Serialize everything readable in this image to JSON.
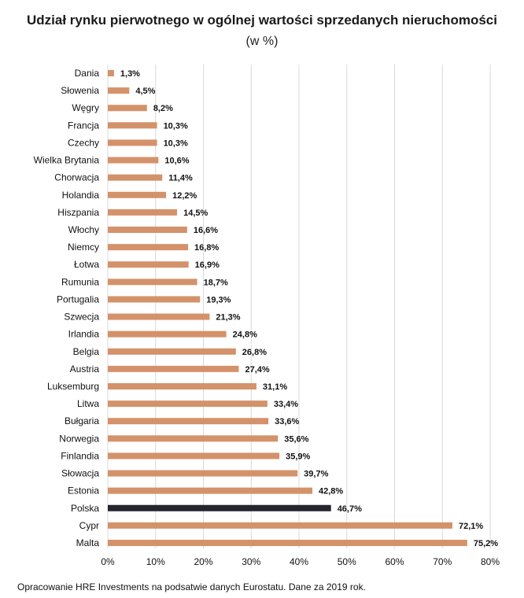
{
  "chart_data": {
    "type": "bar",
    "orientation": "horizontal",
    "title": "Udział rynku pierwotnego w ogólnej wartości sprzedanych nieruchomości",
    "subtitle": "(w %)",
    "categories": [
      "Dania",
      "Słowenia",
      "Węgry",
      "Francja",
      "Czechy",
      "Wielka Brytania",
      "Chorwacja",
      "Holandia",
      "Hiszpania",
      "Włochy",
      "Niemcy",
      "Łotwa",
      "Rumunia",
      "Portugalia",
      "Szwecja",
      "Irlandia",
      "Belgia",
      "Austria",
      "Luksemburg",
      "Litwa",
      "Bułgaria",
      "Norwegia",
      "Finlandia",
      "Słowacja",
      "Estonia",
      "Polska",
      "Cypr",
      "Malta"
    ],
    "values": [
      1.3,
      4.5,
      8.2,
      10.3,
      10.3,
      10.6,
      11.4,
      12.2,
      14.5,
      16.6,
      16.8,
      16.9,
      18.7,
      19.3,
      21.3,
      24.8,
      26.8,
      27.4,
      31.1,
      33.4,
      33.6,
      35.6,
      35.9,
      39.7,
      42.8,
      46.7,
      72.1,
      75.2
    ],
    "value_labels": [
      "1,3%",
      "4,5%",
      "8,2%",
      "10,3%",
      "10,3%",
      "10,6%",
      "11,4%",
      "12,2%",
      "14,5%",
      "16,6%",
      "16,8%",
      "16,9%",
      "18,7%",
      "19,3%",
      "21,3%",
      "24,8%",
      "26,8%",
      "27,4%",
      "31,1%",
      "33,4%",
      "33,6%",
      "35,6%",
      "35,9%",
      "39,7%",
      "42,8%",
      "46,7%",
      "72,1%",
      "75,2%"
    ],
    "highlight_category": "Polska",
    "xlim": [
      0,
      80
    ],
    "x_ticks": [
      "0%",
      "10%",
      "20%",
      "30%",
      "40%",
      "50%",
      "60%",
      "70%",
      "80%"
    ],
    "grid": true,
    "colors": {
      "bar": "#d4926a",
      "highlight": "#252530",
      "grid": "#d9d9d9"
    }
  },
  "footer": {
    "source": "Opracowanie HRE Investments na podsatwie danych Eurostatu. Dane za 2019 rok."
  }
}
